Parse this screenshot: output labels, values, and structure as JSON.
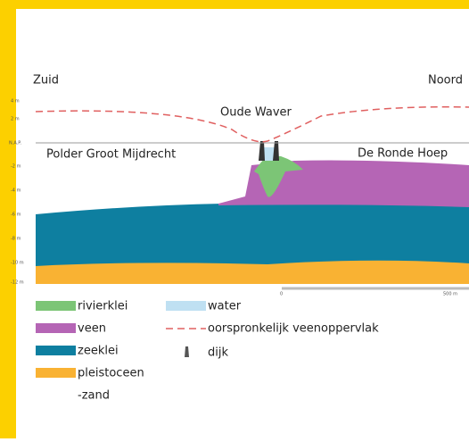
{
  "labels": {
    "south": "Zuid",
    "north": "Noord",
    "river": "Oude Waver",
    "polder_left": "Polder Groot Mijdrecht",
    "polder_right": "De Ronde Hoep"
  },
  "depth_axis": [
    "4 m",
    "2 m",
    "N.A.P.",
    "-2 m",
    "-4 m",
    "-6 m",
    "-8 m",
    "-10 m",
    "-12 m"
  ],
  "scale_bar": {
    "start": "0",
    "end": "500 m"
  },
  "legend": {
    "rivierklei": "rivierklei",
    "veen": "veen",
    "zeeklei": "zeeklei",
    "pleistoceen": "pleistoceen",
    "pleistoceen_cont": "-zand",
    "water": "water",
    "veenoppervlak": "oorspronkelijk veenoppervlak",
    "dijk": "dijk"
  }
}
